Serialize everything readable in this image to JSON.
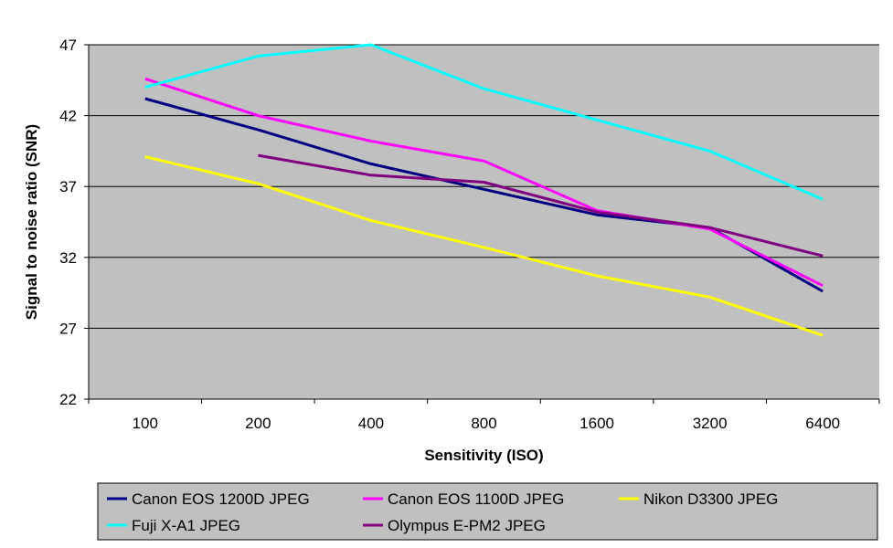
{
  "chart_data": {
    "type": "line",
    "title": "",
    "xlabel": "Sensitivity (ISO)",
    "ylabel": "Signal to noise ratio (SNR)",
    "categories": [
      "100",
      "200",
      "400",
      "800",
      "1600",
      "3200",
      "6400"
    ],
    "ylim": [
      22,
      47
    ],
    "yticks": [
      22,
      27,
      32,
      37,
      42,
      47
    ],
    "grid": "horizontal",
    "plot_background": "#c0c0c0",
    "legend_position": "bottom",
    "series": [
      {
        "name": "Canon EOS 1200D JPEG",
        "color": "#000080",
        "values": [
          43.2,
          41.0,
          38.6,
          36.8,
          35.0,
          34.1,
          29.6
        ]
      },
      {
        "name": "Canon EOS 1100D JPEG",
        "color": "#ff00ff",
        "values": [
          44.6,
          42.0,
          40.2,
          38.8,
          35.3,
          34.0,
          30.0
        ]
      },
      {
        "name": "Nikon D3300 JPEG",
        "color": "#ffff00",
        "values": [
          39.1,
          37.2,
          34.6,
          32.7,
          30.7,
          29.2,
          26.5
        ]
      },
      {
        "name": "Fuji X-A1 JPEG",
        "color": "#00ffff",
        "values": [
          44.0,
          46.2,
          47.0,
          43.9,
          41.7,
          39.5,
          36.1
        ]
      },
      {
        "name": "Olympus E-PM2 JPEG",
        "color": "#800080",
        "values": [
          null,
          39.2,
          37.8,
          37.3,
          35.2,
          34.1,
          32.1
        ]
      }
    ]
  }
}
